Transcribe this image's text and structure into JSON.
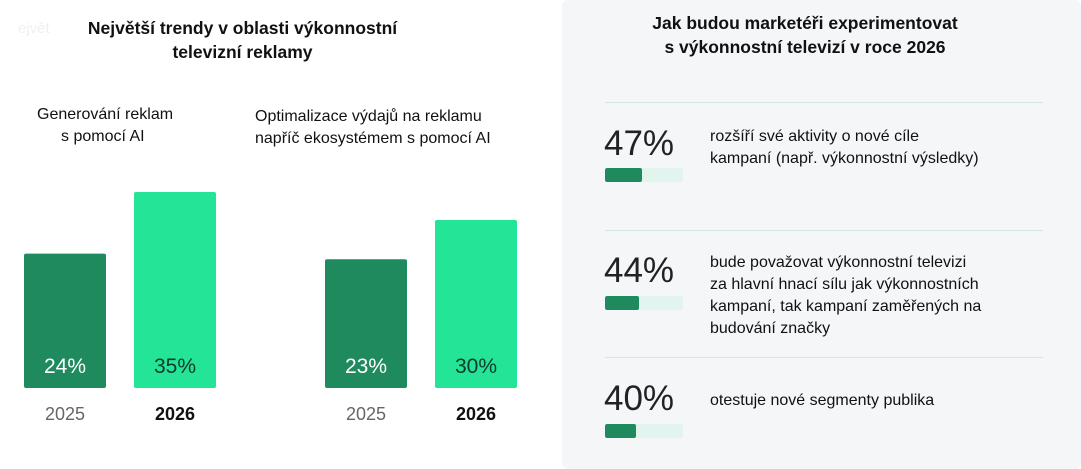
{
  "left": {
    "watermark": "ejvět",
    "title_lines": [
      "Největší trendy v oblasti výkonnostní",
      "televizní reklamy"
    ]
  },
  "chart_data": {
    "type": "bar",
    "title": "Největší trendy v oblasti výkonnostní televizní reklamy",
    "unit": "%",
    "groups": [
      {
        "title_lines": [
          "Generování reklam",
          "s pomocí AI"
        ],
        "bars": [
          {
            "year": "2025",
            "value": 24,
            "label": "24%",
            "color": "#1e8a5e"
          },
          {
            "year": "2026",
            "value": 35,
            "label": "35%",
            "color": "#23e497"
          }
        ]
      },
      {
        "title_lines": [
          "Optimalizace výdajů na reklamu",
          "napříč ekosystémem s pomocí AI"
        ],
        "bars": [
          {
            "year": "2025",
            "value": 23,
            "label": "23%",
            "color": "#1e8a5e"
          },
          {
            "year": "2026",
            "value": 30,
            "label": "30%",
            "color": "#23e497"
          }
        ]
      }
    ]
  },
  "right": {
    "title_lines": [
      "Jak budou marketéři experimentovat",
      "s výkonnostní televizí v roce 2026"
    ],
    "stats": [
      {
        "value": "47%",
        "fraction": 0.47,
        "text_lines": [
          "rozšíří své aktivity o nové cíle",
          "kampaní (např. výkonnostní výsledky)"
        ]
      },
      {
        "value": "44%",
        "fraction": 0.44,
        "text_lines": [
          "bude považovat výkonnostní televizi",
          "za hlavní hnací sílu jak výkonnostních",
          "kampaní, tak kampaní zaměřených na",
          "budování značky"
        ]
      },
      {
        "value": "40%",
        "fraction": 0.4,
        "text_lines": [
          "otestuje nové segmenty publika"
        ]
      }
    ]
  },
  "colors": {
    "dark_green": "#1e8a5e",
    "bright_green": "#23e497",
    "light_track": "#e3f4ee",
    "panel_bg": "#f5f6f8"
  }
}
